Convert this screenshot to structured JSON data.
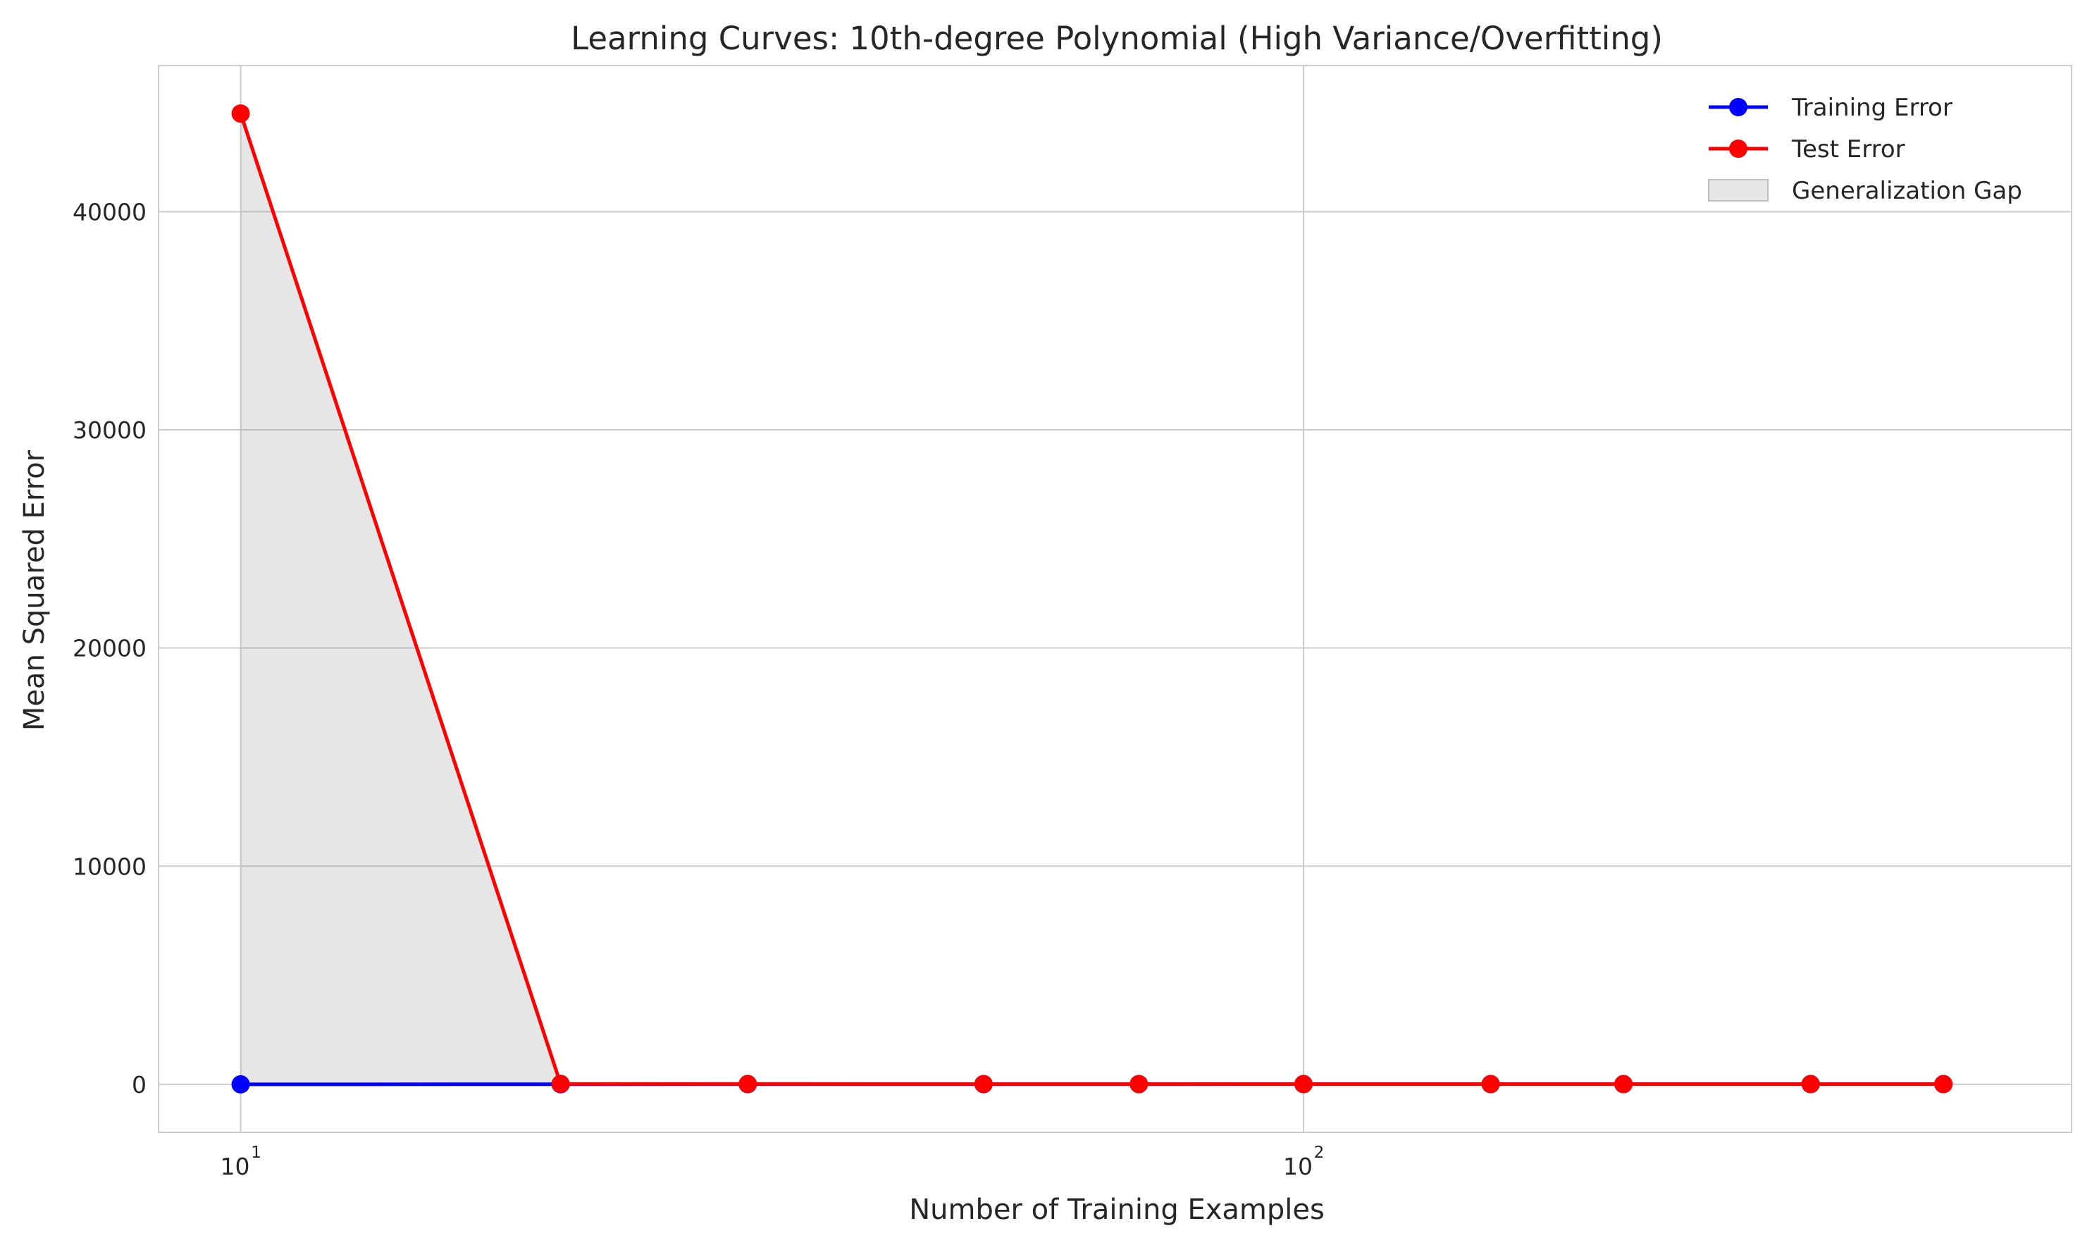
{
  "chart_data": {
    "type": "line",
    "title": "Learning Curves: 10th-degree Polynomial (High Variance/Overfitting)",
    "xlabel": "Number of Training Examples",
    "ylabel": "Mean Squared Error",
    "x_scale": "log",
    "xlim": [
      8.37,
      528
    ],
    "ylim": [
      -2200,
      46700
    ],
    "grid": true,
    "legend_position": "top-right",
    "x_ticks": [
      {
        "value": 10,
        "base": "10",
        "exp": "1"
      },
      {
        "value": 100,
        "base": "10",
        "exp": "2"
      }
    ],
    "y_ticks": [
      {
        "value": 0,
        "label": "0"
      },
      {
        "value": 10000,
        "label": "10000"
      },
      {
        "value": 20000,
        "label": "20000"
      },
      {
        "value": 30000,
        "label": "30000"
      },
      {
        "value": 40000,
        "label": "40000"
      }
    ],
    "x": [
      10,
      20,
      30,
      50,
      70,
      100,
      150,
      200,
      300,
      400
    ],
    "series": [
      {
        "name": "Training Error",
        "color": "#0000ff",
        "marker": "circle",
        "values": [
          0,
          5,
          8,
          10,
          10,
          11,
          11,
          11,
          11,
          11
        ]
      },
      {
        "name": "Test Error",
        "color": "#ff0000",
        "marker": "circle",
        "values": [
          44500,
          20,
          15,
          14,
          13,
          12,
          12,
          12,
          12,
          12
        ]
      }
    ],
    "fill": {
      "name": "Generalization Gap",
      "color": "#808080",
      "opacity": 0.2,
      "between": [
        "Training Error",
        "Test Error"
      ]
    }
  }
}
